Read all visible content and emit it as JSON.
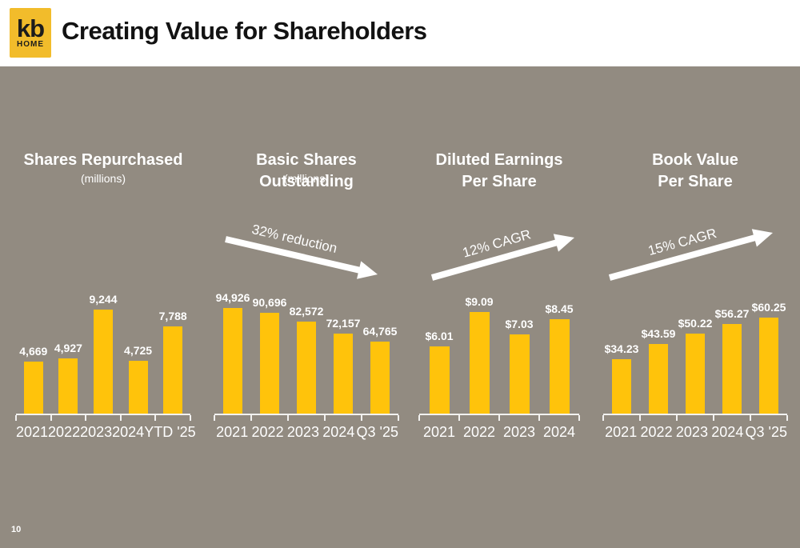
{
  "header": {
    "logo": {
      "line1": "kb",
      "line2": "HOME"
    },
    "title": "Creating Value for Shareholders"
  },
  "page_number": "10",
  "colors": {
    "brand_logo_yellow": "#F2BC2B",
    "bar_yellow": "#FFC30B",
    "panel_background": "#928B81",
    "header_background": "#FFFFFF",
    "chart_text": "#FFFFFF",
    "title_text": "#121212"
  },
  "chart_data": [
    {
      "type": "bar",
      "title": "Shares Repurchased",
      "subtitle": "(millions)",
      "categories": [
        "2021",
        "2022",
        "2023",
        "2024",
        "YTD '25"
      ],
      "values": [
        4669,
        4927,
        9244,
        4725,
        7788
      ],
      "labels": [
        "4,669",
        "4,927",
        "9,244",
        "4,725",
        "7,788"
      ],
      "ylim": [
        0,
        10700
      ],
      "annotation": null,
      "grid": false,
      "legend": false
    },
    {
      "type": "bar",
      "title": "Basic Shares Outstanding",
      "subtitle": "(millions)",
      "categories": [
        "2021",
        "2022",
        "2023",
        "2024",
        "Q3 '25"
      ],
      "values": [
        94926,
        90696,
        82572,
        72157,
        64765
      ],
      "labels": [
        "94,926",
        "90,696",
        "82,572",
        "72,157",
        "64,765"
      ],
      "ylim": [
        0,
        107900
      ],
      "annotation": {
        "text": "32% reduction",
        "direction": "down-right"
      },
      "grid": false,
      "legend": false
    },
    {
      "type": "bar",
      "title": "Diluted Earnings\nPer Share",
      "categories": [
        "2021",
        "2022",
        "2023",
        "2024"
      ],
      "values": [
        6.01,
        9.09,
        7.03,
        8.45
      ],
      "labels": [
        "$6.01",
        "$9.09",
        "$7.03",
        "$8.45"
      ],
      "ylim": [
        0,
        10.7
      ],
      "annotation": {
        "text": "12% CAGR",
        "direction": "up-right"
      },
      "grid": false,
      "legend": false
    },
    {
      "type": "bar",
      "title": "Book Value\nPer Share",
      "categories": [
        "2021",
        "2022",
        "2023",
        "2024",
        "Q3 '25"
      ],
      "values": [
        34.23,
        43.59,
        50.22,
        56.27,
        60.25
      ],
      "labels": [
        "$34.23",
        "$43.59",
        "$50.22",
        "$56.27",
        "$60.25"
      ],
      "ylim": [
        0,
        75.5
      ],
      "annotation": {
        "text": "15% CAGR",
        "direction": "up-right"
      },
      "grid": false,
      "legend": false
    }
  ]
}
